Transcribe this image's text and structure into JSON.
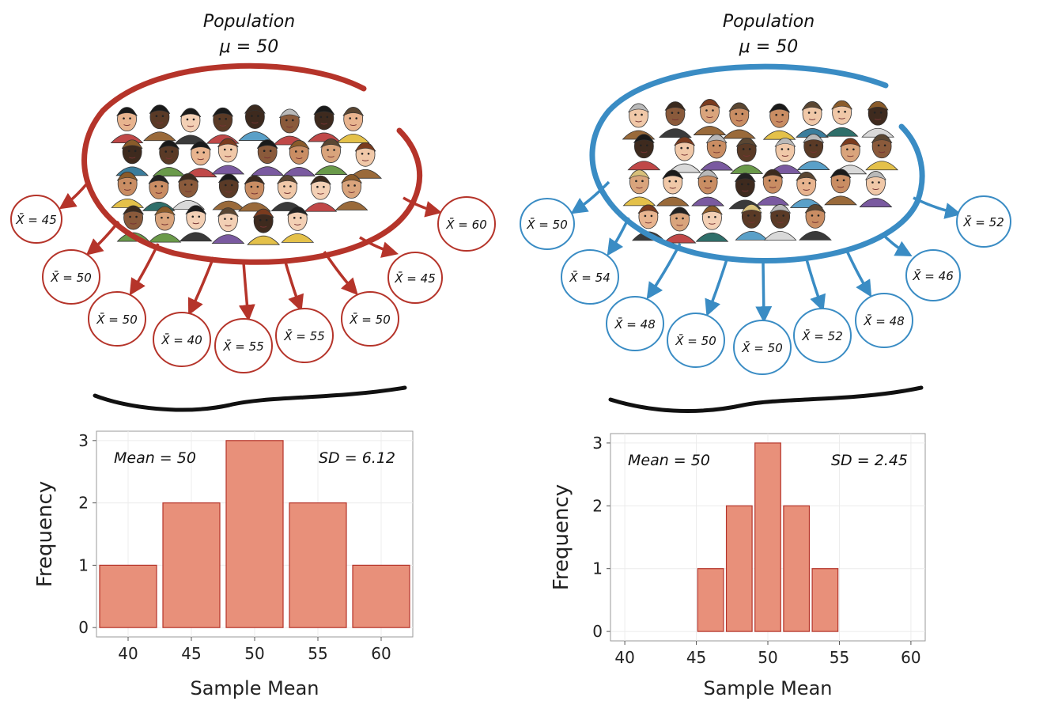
{
  "panels": [
    {
      "population_title": "Population",
      "population_param": "μ = 50",
      "sample_labels": [
        "X̄ = 45",
        "X̄ = 50",
        "X̄ = 50",
        "X̄ = 40",
        "X̄ = 55",
        "X̄ = 55",
        "X̄ = 50",
        "X̄ = 45",
        "X̄ = 60"
      ],
      "color": "#b5342a",
      "people_count": 30
    },
    {
      "population_title": "Population",
      "population_param": "μ = 50",
      "sample_labels": [
        "X̄ = 50",
        "X̄ = 54",
        "X̄ = 48",
        "X̄ = 50",
        "X̄ = 50",
        "X̄ = 52",
        "X̄ = 48",
        "X̄ = 46",
        "X̄ = 52"
      ],
      "color": "#3a8cc4",
      "people_count": 30
    }
  ],
  "chart_data": [
    {
      "type": "bar",
      "x": [
        40,
        45,
        50,
        55,
        60
      ],
      "values": [
        1,
        2,
        3,
        2,
        1
      ],
      "bar_width": 4.5,
      "xlabel": "Sample Mean",
      "ylabel": "Frequency",
      "xticks": [
        40,
        45,
        50,
        55,
        60
      ],
      "yticks": [
        0,
        1,
        2,
        3
      ],
      "xlim": [
        37.5,
        62.5
      ],
      "ylim": [
        -0.15,
        3.15
      ],
      "annotation_left": "Mean = 50",
      "annotation_right": "SD = 6.12",
      "bar_color": "#e8907a",
      "bar_edge": "#b5342a"
    },
    {
      "type": "bar",
      "x": [
        46,
        48,
        50,
        52,
        54
      ],
      "values": [
        1,
        2,
        3,
        2,
        1
      ],
      "bar_width": 1.8,
      "xlabel": "Sample Mean",
      "ylabel": "Frequency",
      "xticks": [
        40,
        45,
        50,
        55,
        60
      ],
      "yticks": [
        0,
        1,
        2,
        3
      ],
      "xlim": [
        39,
        61
      ],
      "ylim": [
        -0.15,
        3.15
      ],
      "annotation_left": "Mean = 50",
      "annotation_right": "SD = 2.45",
      "bar_color": "#e8907a",
      "bar_edge": "#b5342a"
    }
  ]
}
